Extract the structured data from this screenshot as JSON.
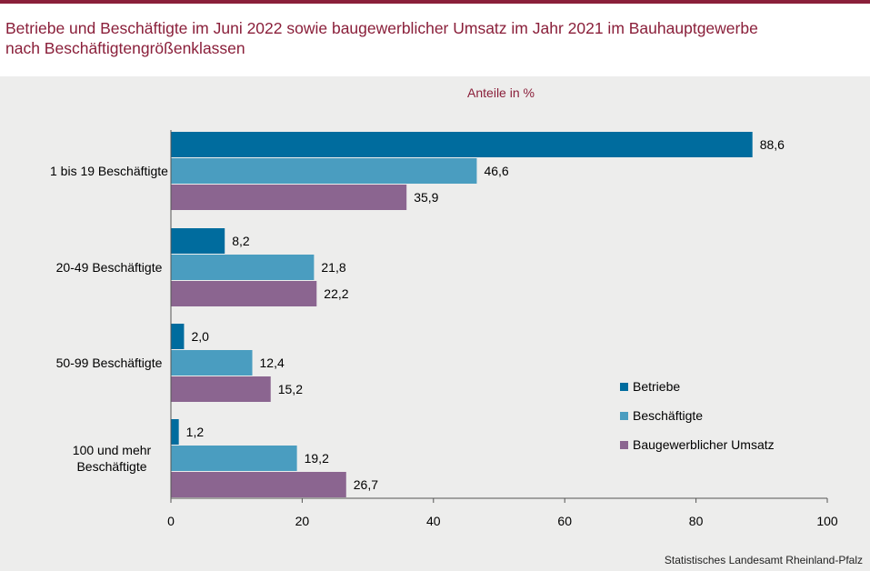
{
  "title": {
    "line1": "Betriebe und Beschäftigte im Juni 2022 sowie baugewerblicher Umsatz im Jahr 2021 im Bauhauptgewerbe",
    "line2": "nach Beschäftigtengrößenklassen"
  },
  "source": "Statistisches Landesamt Rheinland-Pfalz",
  "colors": {
    "title": "#8a1f3a",
    "betriebe": "#006c9e",
    "beschaeftigte": "#4a9dc0",
    "umsatz": "#8b6590"
  },
  "chart_data": {
    "type": "bar",
    "orientation": "horizontal",
    "subtitle": "Anteile in %",
    "categories": [
      [
        "1 bis 19 Beschäftigte"
      ],
      [
        "20-49 Beschäftigte"
      ],
      [
        "50-99 Beschäftigte"
      ],
      [
        "100 und mehr",
        "Beschäftigte"
      ]
    ],
    "series": [
      {
        "name": "Betriebe",
        "values": [
          88.6,
          8.2,
          2.0,
          1.2
        ],
        "labels": [
          "88,6",
          "8,2",
          "2,0",
          "1,2"
        ]
      },
      {
        "name": "Beschäftigte",
        "values": [
          46.6,
          21.8,
          12.4,
          19.2
        ],
        "labels": [
          "46,6",
          "21,8",
          "12,4",
          "19,2"
        ]
      },
      {
        "name": "Baugewerblicher Umsatz",
        "values": [
          35.9,
          22.2,
          15.2,
          26.7
        ],
        "labels": [
          "35,9",
          "22,2",
          "15,2",
          "26,7"
        ]
      }
    ],
    "xlim": [
      0,
      100
    ],
    "xticks": [
      0,
      20,
      40,
      60,
      80,
      100
    ],
    "legend_position": "right"
  }
}
